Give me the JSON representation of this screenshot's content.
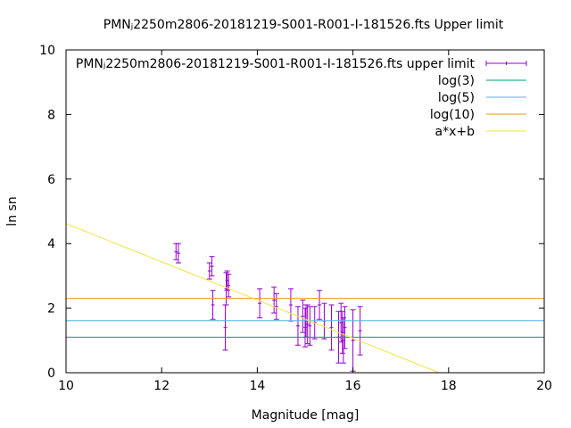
{
  "chart_data": {
    "type": "scatter",
    "title": "PMNⱼ2250m2806-20181219-S001-R001-I-181526.fts Upper limit",
    "xlabel": "Magnitude [mag]",
    "ylabel": "ln sn",
    "xlim": [
      10,
      20
    ],
    "ylim": [
      0,
      10
    ],
    "xticks": [
      "10",
      "12",
      "14",
      "16",
      "18",
      "20"
    ],
    "yticks": [
      "0",
      "2",
      "4",
      "6",
      "8",
      "10"
    ],
    "grid": false,
    "legend_position": "top-right",
    "legend": [
      {
        "label": "PMNⱼ2250m2806-20181219-S001-R001-I-181526.fts upper limit",
        "color": "#9400d3",
        "style": "errorbar"
      },
      {
        "label": "log(3)",
        "color": "#009e73",
        "style": "line"
      },
      {
        "label": "log(5)",
        "color": "#56b4e9",
        "style": "line"
      },
      {
        "label": "log(10)",
        "color": "#e69f00",
        "style": "line"
      },
      {
        "label": "a*x+b",
        "color": "#f0e442",
        "style": "line"
      }
    ],
    "series": [
      {
        "name": "PMNⱼ2250m2806-20181219-S001-R001-I-181526.fts upper limit",
        "type": "errorbar",
        "color": "#9400d3",
        "points": [
          {
            "x": 12.3,
            "y": 3.75,
            "yerr": 0.25
          },
          {
            "x": 12.35,
            "y": 3.7,
            "yerr": 0.3
          },
          {
            "x": 13.0,
            "y": 3.15,
            "yerr": 0.25
          },
          {
            "x": 13.05,
            "y": 3.3,
            "yerr": 0.3
          },
          {
            "x": 13.07,
            "y": 2.1,
            "yerr": 0.45
          },
          {
            "x": 13.35,
            "y": 2.6,
            "yerr": 0.5
          },
          {
            "x": 13.37,
            "y": 2.85,
            "yerr": 0.3
          },
          {
            "x": 13.4,
            "y": 2.7,
            "yerr": 0.35
          },
          {
            "x": 13.33,
            "y": 1.4,
            "yerr": 0.7
          },
          {
            "x": 14.05,
            "y": 2.15,
            "yerr": 0.45
          },
          {
            "x": 14.35,
            "y": 2.25,
            "yerr": 0.4
          },
          {
            "x": 14.4,
            "y": 2.05,
            "yerr": 0.4
          },
          {
            "x": 14.7,
            "y": 2.1,
            "yerr": 0.5
          },
          {
            "x": 14.85,
            "y": 1.45,
            "yerr": 0.6
          },
          {
            "x": 14.95,
            "y": 1.75,
            "yerr": 0.5
          },
          {
            "x": 15.0,
            "y": 1.4,
            "yerr": 0.6
          },
          {
            "x": 15.02,
            "y": 1.6,
            "yerr": 0.5
          },
          {
            "x": 15.05,
            "y": 1.5,
            "yerr": 0.6
          },
          {
            "x": 15.1,
            "y": 1.45,
            "yerr": 0.6
          },
          {
            "x": 15.2,
            "y": 1.55,
            "yerr": 0.5
          },
          {
            "x": 15.3,
            "y": 2.1,
            "yerr": 0.45
          },
          {
            "x": 15.4,
            "y": 1.6,
            "yerr": 0.55
          },
          {
            "x": 15.55,
            "y": 1.4,
            "yerr": 0.7
          },
          {
            "x": 15.7,
            "y": 1.1,
            "yerr": 0.8
          },
          {
            "x": 15.75,
            "y": 1.55,
            "yerr": 0.6
          },
          {
            "x": 15.78,
            "y": 1.25,
            "yerr": 0.65
          },
          {
            "x": 15.8,
            "y": 1.0,
            "yerr": 0.7
          },
          {
            "x": 15.83,
            "y": 1.4,
            "yerr": 0.65
          },
          {
            "x": 16.0,
            "y": 1.0,
            "yerr": 0.95
          },
          {
            "x": 16.15,
            "y": 1.3,
            "yerr": 0.75
          }
        ]
      },
      {
        "name": "log(3)",
        "type": "hline",
        "color": "#009e73",
        "y": 1.0986
      },
      {
        "name": "log(5)",
        "type": "hline",
        "color": "#56b4e9",
        "y": 1.6094
      },
      {
        "name": "log(10)",
        "type": "hline",
        "color": "#e69f00",
        "y": 2.3026
      },
      {
        "name": "a*x+b",
        "type": "line",
        "color": "#f0e442",
        "x": [
          10,
          17.8
        ],
        "y": [
          4.62,
          0
        ]
      }
    ]
  }
}
